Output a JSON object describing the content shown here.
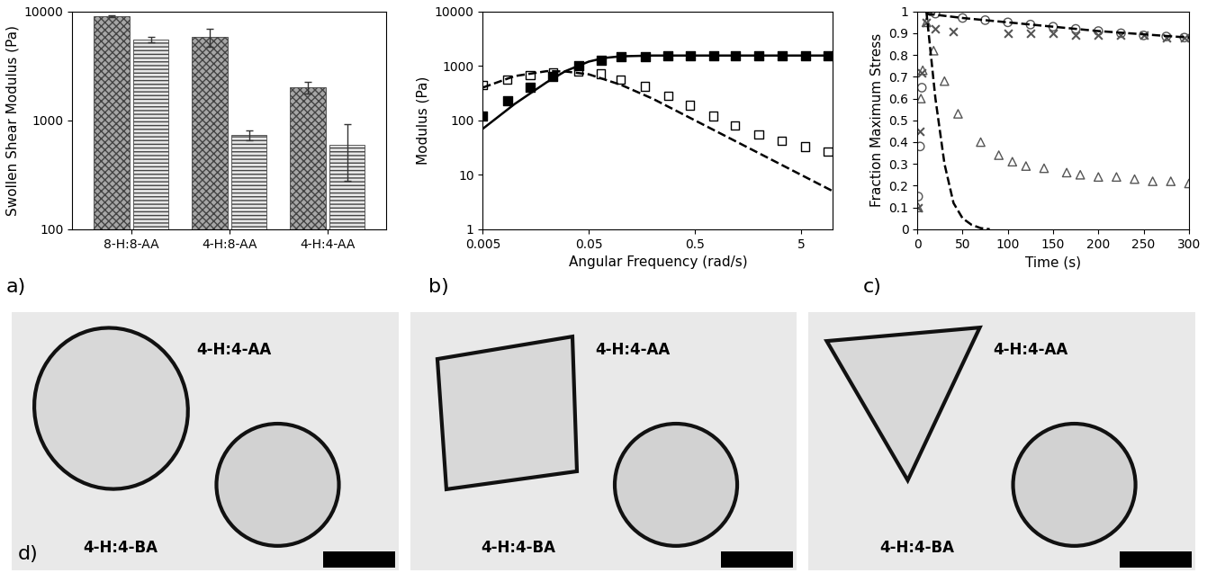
{
  "chart_data": [
    {
      "type": "bar",
      "panel_label": "a)",
      "y_label": "Swollen Shear Modulus (Pa)",
      "log": "y",
      "ylim": [
        100,
        10000
      ],
      "yticks": [
        100,
        1000,
        10000
      ],
      "categories": [
        "8-H:8-AA",
        "4-H:8-AA",
        "4-H:4-AA"
      ],
      "series": [
        {
          "color": "#a6a6a6",
          "values": [
            9000,
            5800,
            2000
          ],
          "errors": [
            200,
            1100,
            250
          ]
        },
        {
          "color": "#e8e8e8",
          "values": [
            5500,
            730,
            600
          ],
          "errors": [
            300,
            80,
            320
          ]
        }
      ]
    },
    {
      "type": "scatter",
      "panel_label": "b)",
      "x_label": "Angular Frequency (rad/s)",
      "y_label": "Modulus (Pa)",
      "log": true,
      "xlim": [
        0.005,
        10
      ],
      "xticks": [
        0.005,
        0.05,
        0.5,
        5
      ],
      "ylim": [
        1,
        10000
      ],
      "yticks": [
        1,
        10,
        100,
        1000,
        10000
      ],
      "series": [
        {
          "type": "scatter",
          "marker": "filled_square",
          "color": "#000000",
          "x": [
            0.005,
            0.0085,
            0.014,
            0.023,
            0.04,
            0.065,
            0.1,
            0.17,
            0.28,
            0.45,
            0.75,
            1.2,
            2,
            3.3,
            5.5,
            9
          ],
          "values": [
            120,
            230,
            400,
            650,
            1000,
            1250,
            1450,
            1500,
            1520,
            1530,
            1540,
            1540,
            1540,
            1550,
            1550,
            1550
          ]
        },
        {
          "type": "scatter",
          "marker": "open_square",
          "color": "#000000",
          "x": [
            0.005,
            0.0085,
            0.014,
            0.023,
            0.04,
            0.065,
            0.1,
            0.17,
            0.28,
            0.45,
            0.75,
            1.2,
            2,
            3.3,
            5.5,
            9
          ],
          "values": [
            450,
            560,
            680,
            760,
            800,
            720,
            560,
            420,
            280,
            190,
            120,
            80,
            55,
            42,
            33,
            27
          ]
        },
        {
          "type": "line",
          "line_style": "solid",
          "color": "#000000",
          "x": [
            0.005,
            0.01,
            0.02,
            0.03,
            0.05,
            0.07,
            0.1,
            0.2,
            0.5,
            1,
            2,
            5,
            10
          ],
          "values": [
            70,
            200,
            500,
            800,
            1200,
            1400,
            1500,
            1550,
            1550,
            1550,
            1550,
            1550,
            1550
          ]
        },
        {
          "type": "line",
          "line_style": "dashed",
          "color": "#000000",
          "x": [
            0.005,
            0.01,
            0.02,
            0.03,
            0.05,
            0.1,
            0.2,
            0.5,
            1,
            2,
            5,
            10
          ],
          "values": [
            400,
            650,
            800,
            790,
            700,
            450,
            250,
            100,
            50,
            25,
            10,
            5
          ]
        }
      ]
    },
    {
      "type": "scatter",
      "panel_label": "c)",
      "x_label": "Time (s)",
      "y_label": "Fraction Maximum Stress",
      "xlim": [
        0,
        300
      ],
      "xticks": [
        0,
        50,
        100,
        150,
        200,
        250,
        300
      ],
      "ylim": [
        0,
        1
      ],
      "yticks": [
        0,
        0.1,
        0.2,
        0.3,
        0.4,
        0.5,
        0.6,
        0.7,
        0.8,
        0.9,
        1
      ],
      "series": [
        {
          "type": "scatter",
          "marker": "open_circle",
          "color": "#555555",
          "x": [
            1,
            3,
            5,
            15,
            20,
            50,
            75,
            100,
            125,
            150,
            175,
            200,
            225,
            250,
            275,
            295
          ],
          "values": [
            0.15,
            0.38,
            0.65,
            1.0,
            0.99,
            0.97,
            0.96,
            0.95,
            0.94,
            0.93,
            0.92,
            0.91,
            0.9,
            0.89,
            0.885,
            0.88
          ]
        },
        {
          "type": "scatter",
          "marker": "x",
          "color": "#555555",
          "x": [
            1,
            3,
            5,
            10,
            20,
            40,
            100,
            125,
            150,
            175,
            200,
            225,
            250,
            275,
            295
          ],
          "values": [
            0.1,
            0.45,
            0.72,
            0.95,
            0.92,
            0.91,
            0.9,
            0.9,
            0.9,
            0.89,
            0.89,
            0.89,
            0.89,
            0.88,
            0.88
          ]
        },
        {
          "type": "scatter",
          "marker": "open_triangle",
          "color": "#555555",
          "x": [
            1,
            4,
            6,
            10,
            18,
            30,
            45,
            70,
            90,
            105,
            120,
            140,
            165,
            180,
            200,
            220,
            240,
            260,
            280,
            300
          ],
          "values": [
            0.1,
            0.6,
            0.73,
            0.95,
            0.82,
            0.68,
            0.53,
            0.4,
            0.34,
            0.31,
            0.29,
            0.28,
            0.26,
            0.25,
            0.24,
            0.24,
            0.23,
            0.22,
            0.22,
            0.21
          ]
        },
        {
          "type": "line",
          "line_style": "dashed",
          "color": "#000000",
          "x": [
            10,
            50,
            100,
            150,
            200,
            250,
            300
          ],
          "values": [
            0.99,
            0.97,
            0.95,
            0.93,
            0.91,
            0.895,
            0.88
          ]
        },
        {
          "type": "line",
          "line_style": "dashed",
          "color": "#000000",
          "x": [
            10,
            20,
            30,
            40,
            50,
            60,
            70,
            80
          ],
          "values": [
            1.0,
            0.6,
            0.3,
            0.12,
            0.05,
            0.02,
            0.005,
            0
          ]
        }
      ]
    }
  ],
  "photos": {
    "panel_label": "d)",
    "images": [
      {
        "labels": [
          "4-H:4-AA",
          "4-H:4-BA"
        ]
      },
      {
        "labels": [
          "4-H:4-AA",
          "4-H:4-BA"
        ]
      },
      {
        "labels": [
          "4-H:4-AA",
          "4-H:4-BA"
        ]
      }
    ]
  }
}
